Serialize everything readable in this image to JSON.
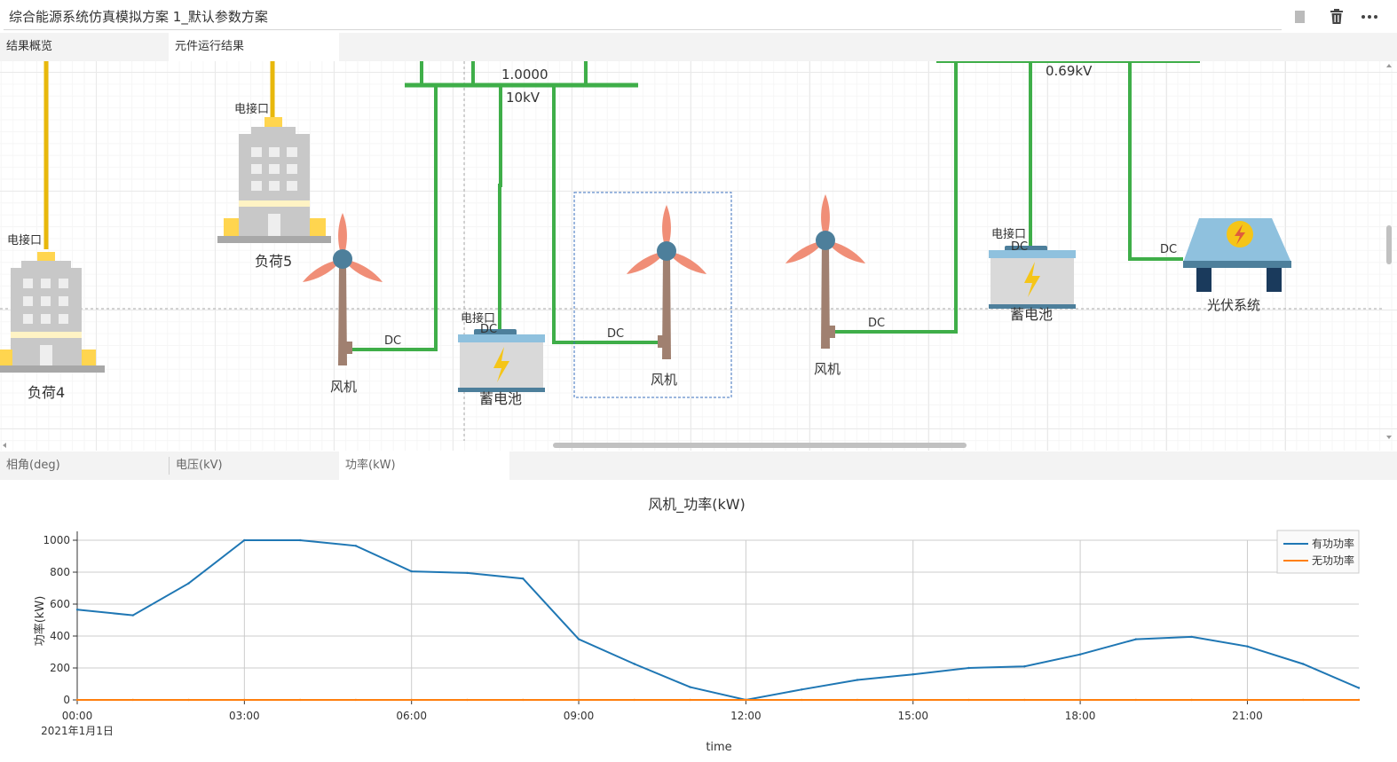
{
  "window": {
    "title": "综合能源系统仿真模拟方案 1_默认参数方案"
  },
  "toolbar": {
    "square_icon": "square-icon",
    "delete_icon": "trash-icon",
    "more_icon": "more-icon"
  },
  "tabs_top": [
    {
      "label": "结果概览",
      "active": false
    },
    {
      "label": "元件运行结果",
      "active": true
    }
  ],
  "canvas": {
    "bus1": {
      "value": "1.0000",
      "voltage": "10kV"
    },
    "bus2": {
      "voltage": "0.69kV"
    },
    "port_label": "电接口",
    "dc_label": "DC",
    "components": {
      "load4": "负荷4",
      "load5": "负荷5",
      "turbine1": "风机",
      "battery1": "蓄电池",
      "turbine2": "风机",
      "turbine3": "风机",
      "battery2": "蓄电池",
      "pv": "光伏系统"
    },
    "colors": {
      "ac_line": "#e8b80c",
      "dc_line": "#3fae49",
      "selection": "#3a6fbd"
    }
  },
  "tabs_bottom": [
    {
      "label": "相角(deg)",
      "active": false
    },
    {
      "label": "电压(kV)",
      "active": false
    },
    {
      "label": "功率(kW)",
      "active": true
    }
  ],
  "chart_data": {
    "type": "line",
    "title": "风机_功率(kW)",
    "xlabel": "time",
    "ylabel": "功率(kW)",
    "x_tick_labels": [
      "00:00",
      "03:00",
      "06:00",
      "09:00",
      "12:00",
      "15:00",
      "18:00",
      "21:00"
    ],
    "x_sub_label": "2021年1月1日",
    "x_hours": [
      0,
      1,
      2,
      3,
      4,
      5,
      6,
      7,
      8,
      9,
      10,
      11,
      12,
      13,
      14,
      15,
      16,
      17,
      18,
      19,
      20,
      21,
      22,
      23
    ],
    "ylim": [
      0,
      1000
    ],
    "y_ticks": [
      "0",
      "200",
      "400",
      "600",
      "800",
      "1000"
    ],
    "grid": true,
    "legend_position": "top-right",
    "series": [
      {
        "name": "有功功率",
        "color": "#1f77b4",
        "values": [
          565,
          530,
          730,
          1000,
          1000,
          965,
          805,
          795,
          760,
          380,
          225,
          80,
          0,
          65,
          125,
          160,
          200,
          210,
          285,
          380,
          395,
          335,
          225,
          75
        ]
      },
      {
        "name": "无功功率",
        "color": "#ff7f0e",
        "values": [
          0,
          0,
          0,
          0,
          0,
          0,
          0,
          0,
          0,
          0,
          0,
          0,
          0,
          0,
          0,
          0,
          0,
          0,
          0,
          0,
          0,
          0,
          0,
          0
        ]
      }
    ]
  }
}
